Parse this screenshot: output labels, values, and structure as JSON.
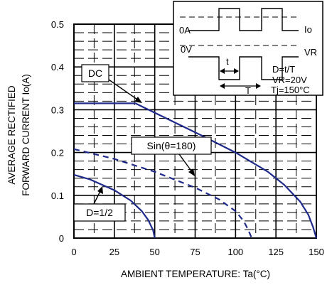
{
  "chart_data": {
    "type": "line",
    "xlabel": "AMBIENT TEMPERATURE: Ta(°C)",
    "ylabel_line1": "AVERAGE RECTIFIED",
    "ylabel_line2": "FORWARD CURRENT Io(A)",
    "xlim": [
      0,
      150
    ],
    "ylim": [
      0,
      0.5
    ],
    "x_ticks": [
      "0",
      "25",
      "50",
      "75",
      "100",
      "125",
      "150"
    ],
    "y_ticks": [
      "0",
      "0.1",
      "0.2",
      "0.3",
      "0.4",
      "0.5"
    ],
    "grid": true,
    "series": [
      {
        "name": "DC",
        "style": "solid",
        "x": [
          0,
          38,
          80,
          100,
          120,
          130,
          140,
          145,
          148,
          150
        ],
        "y": [
          0.315,
          0.315,
          0.238,
          0.2,
          0.155,
          0.125,
          0.085,
          0.055,
          0.025,
          0.0
        ]
      },
      {
        "name": "Sin(θ=180)",
        "style": "dashed",
        "x": [
          0,
          25,
          50,
          75,
          90,
          100,
          105,
          108,
          110
        ],
        "y": [
          0.208,
          0.185,
          0.155,
          0.118,
          0.09,
          0.063,
          0.04,
          0.018,
          0.0
        ]
      },
      {
        "name": "D=1/2",
        "style": "solid",
        "x": [
          0,
          10,
          25,
          35,
          42,
          46,
          49,
          50
        ],
        "y": [
          0.148,
          0.137,
          0.112,
          0.088,
          0.063,
          0.042,
          0.018,
          0.0
        ]
      }
    ],
    "annotations": {
      "dc": "DC",
      "sin": "Sin(θ=180)",
      "d": "D=1/2"
    },
    "inset": {
      "io": "Io",
      "zero_a": "0A",
      "zero_v": "0V",
      "vr": "VR",
      "t": "t",
      "T": "T",
      "duty": "D=t/T",
      "vr_value": "VR=20V",
      "tj_value": "Tj=150°C"
    },
    "colors": {
      "curve": "#1f2a8a",
      "grid": "#000000"
    }
  }
}
